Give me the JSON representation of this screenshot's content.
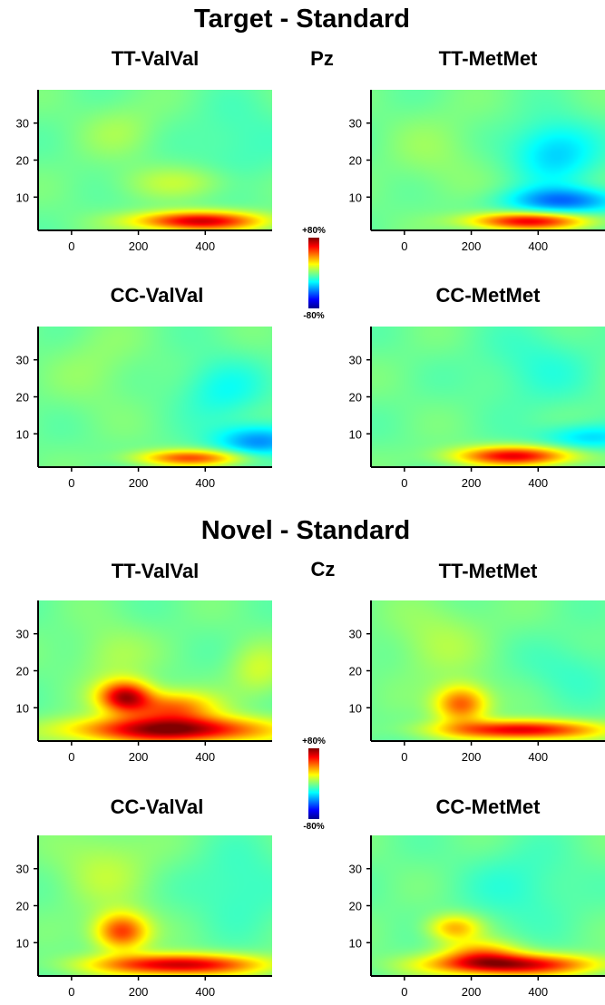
{
  "sections": [
    {
      "title": "Target - Standard",
      "electrode": "Pz",
      "colorbar": {
        "max_label": "+80%",
        "min_label": "-80%"
      },
      "panels": [
        {
          "title": "TT-ValVal"
        },
        {
          "title": "TT-MetMet"
        },
        {
          "title": "CC-ValVal"
        },
        {
          "title": "CC-MetMet"
        }
      ]
    },
    {
      "title": "Novel - Standard",
      "electrode": "Cz",
      "colorbar": {
        "max_label": "+80%",
        "min_label": "-80%"
      },
      "panels": [
        {
          "title": "TT-ValVal"
        },
        {
          "title": "TT-MetMet"
        },
        {
          "title": "CC-ValVal"
        },
        {
          "title": "CC-MetMet"
        }
      ]
    }
  ],
  "chart_data": {
    "type": "heatmap",
    "x_ticks": [
      0,
      200,
      400
    ],
    "y_ticks": [
      10,
      20,
      30
    ],
    "xlim": [
      -100,
      600
    ],
    "ylim": [
      1,
      39
    ],
    "colorscale": "jet",
    "value_range_percent": [
      -80,
      80
    ],
    "panels": [
      {
        "section": "Target - Standard",
        "title": "TT-ValVal",
        "features": [
          {
            "t": 380,
            "f": 3.5,
            "sigma_t": 130,
            "sigma_f": 1.8,
            "value": 70
          },
          {
            "t": 330,
            "f": 14,
            "sigma_t": 120,
            "sigma_f": 3,
            "value": 12
          },
          {
            "t": 150,
            "f": 28,
            "sigma_t": 80,
            "sigma_f": 5,
            "value": 8
          },
          {
            "t": 500,
            "f": 25,
            "sigma_t": 100,
            "sigma_f": 8,
            "value": -8
          }
        ]
      },
      {
        "section": "Target - Standard",
        "title": "TT-MetMet",
        "features": [
          {
            "t": 370,
            "f": 3.5,
            "sigma_t": 120,
            "sigma_f": 1.6,
            "value": 65
          },
          {
            "t": 480,
            "f": 9,
            "sigma_t": 120,
            "sigma_f": 2.5,
            "value": -38
          },
          {
            "t": 450,
            "f": 22,
            "sigma_t": 90,
            "sigma_f": 6,
            "value": -25
          },
          {
            "t": 100,
            "f": 22,
            "sigma_t": 100,
            "sigma_f": 8,
            "value": 6
          }
        ]
      },
      {
        "section": "Target - Standard",
        "title": "CC-ValVal",
        "features": [
          {
            "t": 360,
            "f": 3.5,
            "sigma_t": 110,
            "sigma_f": 1.5,
            "value": 50
          },
          {
            "t": 560,
            "f": 8,
            "sigma_t": 90,
            "sigma_f": 3,
            "value": -35
          },
          {
            "t": 450,
            "f": 22,
            "sigma_t": 90,
            "sigma_f": 6,
            "value": -15
          },
          {
            "t": 80,
            "f": 28,
            "sigma_t": 90,
            "sigma_f": 8,
            "value": 6
          }
        ]
      },
      {
        "section": "Target - Standard",
        "title": "CC-MetMet",
        "features": [
          {
            "t": 330,
            "f": 4,
            "sigma_t": 120,
            "sigma_f": 1.8,
            "value": 65
          },
          {
            "t": 550,
            "f": 9,
            "sigma_t": 100,
            "sigma_f": 2.5,
            "value": -22
          },
          {
            "t": 400,
            "f": 28,
            "sigma_t": 120,
            "sigma_f": 8,
            "value": -10
          }
        ]
      },
      {
        "section": "Novel - Standard",
        "title": "TT-ValVal",
        "features": [
          {
            "t": 300,
            "f": 4,
            "sigma_t": 200,
            "sigma_f": 2.5,
            "value": 80
          },
          {
            "t": 160,
            "f": 13,
            "sigma_t": 55,
            "sigma_f": 3,
            "value": 70
          },
          {
            "t": 300,
            "f": 10,
            "sigma_t": 90,
            "sigma_f": 3,
            "value": 45
          },
          {
            "t": 120,
            "f": 24,
            "sigma_t": 80,
            "sigma_f": 6,
            "value": 10
          },
          {
            "t": 560,
            "f": 20,
            "sigma_t": 60,
            "sigma_f": 5,
            "value": 15
          }
        ]
      },
      {
        "section": "Novel - Standard",
        "title": "TT-MetMet",
        "features": [
          {
            "t": 350,
            "f": 4,
            "sigma_t": 160,
            "sigma_f": 1.8,
            "value": 68
          },
          {
            "t": 170,
            "f": 11,
            "sigma_t": 55,
            "sigma_f": 3.5,
            "value": 50
          },
          {
            "t": 100,
            "f": 28,
            "sigma_t": 100,
            "sigma_f": 8,
            "value": 10
          },
          {
            "t": 500,
            "f": 20,
            "sigma_t": 100,
            "sigma_f": 6,
            "value": -8
          }
        ]
      },
      {
        "section": "Novel - Standard",
        "title": "CC-ValVal",
        "features": [
          {
            "t": 320,
            "f": 4,
            "sigma_t": 170,
            "sigma_f": 2,
            "value": 72
          },
          {
            "t": 150,
            "f": 13,
            "sigma_t": 55,
            "sigma_f": 3.5,
            "value": 55
          },
          {
            "t": 100,
            "f": 30,
            "sigma_t": 100,
            "sigma_f": 8,
            "value": 12
          },
          {
            "t": 500,
            "f": 25,
            "sigma_t": 100,
            "sigma_f": 8,
            "value": -10
          }
        ]
      },
      {
        "section": "Novel - Standard",
        "title": "CC-MetMet",
        "features": [
          {
            "t": 320,
            "f": 4,
            "sigma_t": 170,
            "sigma_f": 2,
            "value": 72
          },
          {
            "t": 150,
            "f": 14,
            "sigma_t": 55,
            "sigma_f": 2.5,
            "value": 35
          },
          {
            "t": 230,
            "f": 7,
            "sigma_t": 80,
            "sigma_f": 2.5,
            "value": 35
          },
          {
            "t": 350,
            "f": 25,
            "sigma_t": 120,
            "sigma_f": 8,
            "value": -10
          }
        ]
      }
    ]
  }
}
